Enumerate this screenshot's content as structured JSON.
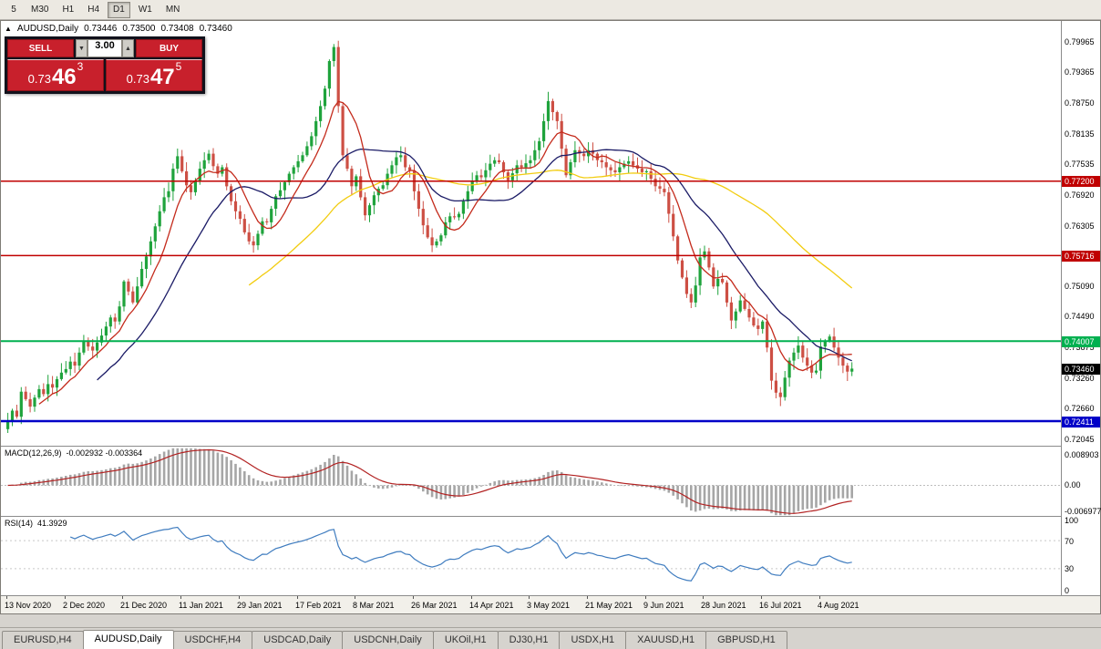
{
  "colors": {
    "up": "#1fa33c",
    "down": "#cd4f44",
    "ma_fast": "#c42b1c",
    "ma_mid": "#1b1b66",
    "ma_slow": "#f2cc0f",
    "macd_hist": "#a6a6a6",
    "macd_signal": "#b22222",
    "rsi_line": "#3f7cbf",
    "badge_current": "#000000"
  },
  "toolbar": {
    "periods": [
      "5",
      "M30",
      "H1",
      "H4",
      "D1",
      "W1",
      "MN"
    ],
    "active": "D1"
  },
  "chart_header": {
    "collapse_icon": "▲",
    "symbol": "AUDUSD,Daily",
    "open": "0.73446",
    "high": "0.73500",
    "low": "0.73408",
    "close": "0.73460"
  },
  "trade_panel": {
    "sell_label": "SELL",
    "buy_label": "BUY",
    "volume": "3.00",
    "spin_down": "▼",
    "spin_up": "▲",
    "sell_price": {
      "prefix": "0.73",
      "big": "46",
      "sup": "3"
    },
    "buy_price": {
      "prefix": "0.73",
      "big": "47",
      "sup": "5"
    }
  },
  "chart_data": {
    "type": "candlestick",
    "symbol": "AUDUSD",
    "timeframe": "Daily",
    "title": "AUDUSD,Daily 0.73446 0.73500 0.73408 0.73460",
    "y_range": {
      "top": 0.804,
      "bottom": 0.7192
    },
    "y_ticks": [
      "0.79965",
      "0.79365",
      "0.78750",
      "0.78135",
      "0.77535",
      "0.76920",
      "0.76305",
      "0.75690",
      "0.75090",
      "0.74490",
      "0.73875",
      "0.73260",
      "0.72660",
      "0.72045"
    ],
    "hlines": [
      {
        "value": 0.772,
        "label": "0.77200",
        "color": "#c00000",
        "width": 1.5
      },
      {
        "value": 0.75716,
        "label": "0.75716",
        "color": "#c00000",
        "width": 1.5
      },
      {
        "value": 0.74007,
        "label": "0.74007",
        "color": "#00b050",
        "width": 2
      },
      {
        "value": 0.72411,
        "label": "0.72411",
        "color": "#0000c8",
        "width": 2.5
      }
    ],
    "current_price": {
      "value": 0.7346,
      "label": "0.73460"
    },
    "moving_averages": [
      {
        "period": 8,
        "color": "#c42b1c"
      },
      {
        "period": 21,
        "color": "#1b1b66"
      },
      {
        "period": 55,
        "color": "#f2cc0f"
      }
    ],
    "closes": [
      0.724,
      0.7262,
      0.725,
      0.73,
      0.7285,
      0.727,
      0.7288,
      0.7305,
      0.7295,
      0.7315,
      0.7308,
      0.7325,
      0.7338,
      0.7345,
      0.736,
      0.7352,
      0.7378,
      0.74,
      0.739,
      0.7382,
      0.7398,
      0.7412,
      0.743,
      0.7448,
      0.744,
      0.747,
      0.752,
      0.75,
      0.7478,
      0.751,
      0.7545,
      0.757,
      0.76,
      0.763,
      0.766,
      0.7688,
      0.77,
      0.7745,
      0.777,
      0.774,
      0.7712,
      0.7698,
      0.772,
      0.7745,
      0.7762,
      0.7775,
      0.775,
      0.7735,
      0.7748,
      0.771,
      0.768,
      0.766,
      0.7645,
      0.7618,
      0.76,
      0.7592,
      0.7615,
      0.764,
      0.7638,
      0.7665,
      0.769,
      0.7702,
      0.7718,
      0.7735,
      0.7748,
      0.776,
      0.7772,
      0.779,
      0.781,
      0.784,
      0.787,
      0.7905,
      0.796,
      0.7988,
      0.787,
      0.7772,
      0.7745,
      0.771,
      0.773,
      0.7688,
      0.7652,
      0.7672,
      0.7692,
      0.7705,
      0.7712,
      0.7735,
      0.7752,
      0.7768,
      0.7772,
      0.7748,
      0.7742,
      0.77,
      0.7665,
      0.7632,
      0.7608,
      0.7592,
      0.76,
      0.7612,
      0.7638,
      0.765,
      0.7648,
      0.7655,
      0.768,
      0.77,
      0.772,
      0.7732,
      0.7728,
      0.7742,
      0.7755,
      0.7762,
      0.7758,
      0.7738,
      0.7722,
      0.7736,
      0.7752,
      0.7748,
      0.7756,
      0.7762,
      0.7782,
      0.78,
      0.784,
      0.788,
      0.7858,
      0.784,
      0.7785,
      0.7732,
      0.7758,
      0.7782,
      0.7775,
      0.777,
      0.7782,
      0.7775,
      0.7762,
      0.7758,
      0.7748,
      0.7742,
      0.7738,
      0.7748,
      0.7755,
      0.776,
      0.7752,
      0.7745,
      0.7738,
      0.774,
      0.7725,
      0.771,
      0.7705,
      0.7698,
      0.7655,
      0.761,
      0.7562,
      0.7528,
      0.7495,
      0.7478,
      0.7512,
      0.7568,
      0.758,
      0.7548,
      0.751,
      0.7525,
      0.7518,
      0.7478,
      0.7442,
      0.746,
      0.7482,
      0.7465,
      0.7448,
      0.7432,
      0.7425,
      0.744,
      0.7388,
      0.7322,
      0.7298,
      0.7289,
      0.7328,
      0.7362,
      0.7378,
      0.7392,
      0.7368,
      0.7352,
      0.7338,
      0.7342,
      0.739,
      0.7402,
      0.741,
      0.7388,
      0.7368,
      0.7352,
      0.734,
      0.7346
    ]
  },
  "macd_panel": {
    "label": "MACD(12,26,9)",
    "values": "-0.002932 -0.003364",
    "axis_top": "0.008903",
    "axis_zero": "0.00",
    "axis_bottom": "-0.006977",
    "range": {
      "top": 0.0096,
      "bottom": -0.0078
    },
    "fast": 12,
    "slow": 26,
    "signal": 9
  },
  "rsi_panel": {
    "label": "RSI(14)",
    "value": "41.3929",
    "period": 14,
    "axis": [
      "100",
      "70",
      "30",
      "0"
    ],
    "levels": [
      70,
      30
    ]
  },
  "time_axis": {
    "bar_step": 13,
    "labels": [
      "13 Nov 2020",
      "2 Dec 2020",
      "21 Dec 2020",
      "11 Jan 2021",
      "29 Jan 2021",
      "17 Feb 2021",
      "8 Mar 2021",
      "26 Mar 2021",
      "14 Apr 2021",
      "3 May 2021",
      "21 May 2021",
      "9 Jun 2021",
      "28 Jun 2021",
      "16 Jul 2021",
      "4 Aug 2021"
    ]
  },
  "tabs": {
    "items": [
      "EURUSD,H4",
      "AUDUSD,Daily",
      "USDCHF,H4",
      "USDCAD,Daily",
      "USDCNH,Daily",
      "UKOil,H1",
      "DJ30,H1",
      "USDX,H1",
      "XAUUSD,H1",
      "GBPUSD,H1"
    ],
    "active": "AUDUSD,Daily"
  }
}
